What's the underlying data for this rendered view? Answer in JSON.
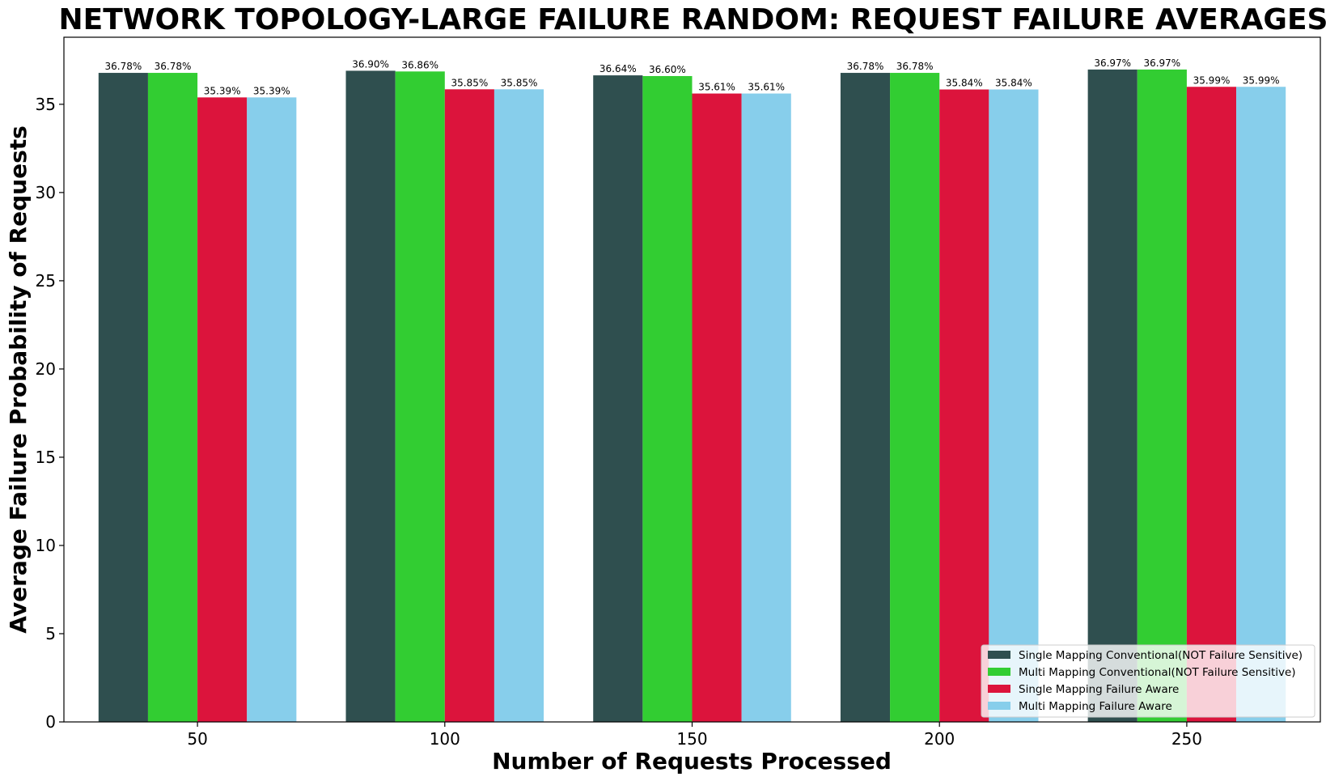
{
  "chart_data": {
    "type": "bar",
    "title": "NETWORK TOPOLOGY-LARGE FAILURE RANDOM: REQUEST FAILURE AVERAGES",
    "xlabel": "Number of Requests Processed",
    "ylabel": "Average Failure Probability of Requests",
    "categories": [
      "50",
      "100",
      "150",
      "200",
      "250"
    ],
    "ylim": [
      0,
      38.8
    ],
    "yticks": [
      0,
      5,
      10,
      15,
      20,
      25,
      30,
      35
    ],
    "grid": false,
    "legend_position": "lower-right",
    "series": [
      {
        "name": "Single Mapping Conventional(NOT Failure Sensitive)",
        "color": "#2f4f4f",
        "values": [
          36.78,
          36.9,
          36.64,
          36.78,
          36.97
        ],
        "labels": [
          "36.78%",
          "36.90%",
          "36.64%",
          "36.78%",
          "36.97%"
        ]
      },
      {
        "name": "Multi Mapping Conventional(NOT Failure Sensitive)",
        "color": "#32cd32",
        "values": [
          36.78,
          36.86,
          36.6,
          36.78,
          36.97
        ],
        "labels": [
          "36.78%",
          "36.86%",
          "36.60%",
          "36.78%",
          "36.97%"
        ]
      },
      {
        "name": "Single Mapping Failure Aware",
        "color": "#dc143c",
        "values": [
          35.39,
          35.85,
          35.61,
          35.84,
          35.99
        ],
        "labels": [
          "35.39%",
          "35.85%",
          "35.61%",
          "35.84%",
          "35.99%"
        ]
      },
      {
        "name": "Multi Mapping Failure Aware",
        "color": "#87ceeb",
        "values": [
          35.39,
          35.85,
          35.61,
          35.84,
          35.99
        ],
        "labels": [
          "35.39%",
          "35.85%",
          "35.61%",
          "35.84%",
          "35.99%"
        ]
      }
    ]
  }
}
